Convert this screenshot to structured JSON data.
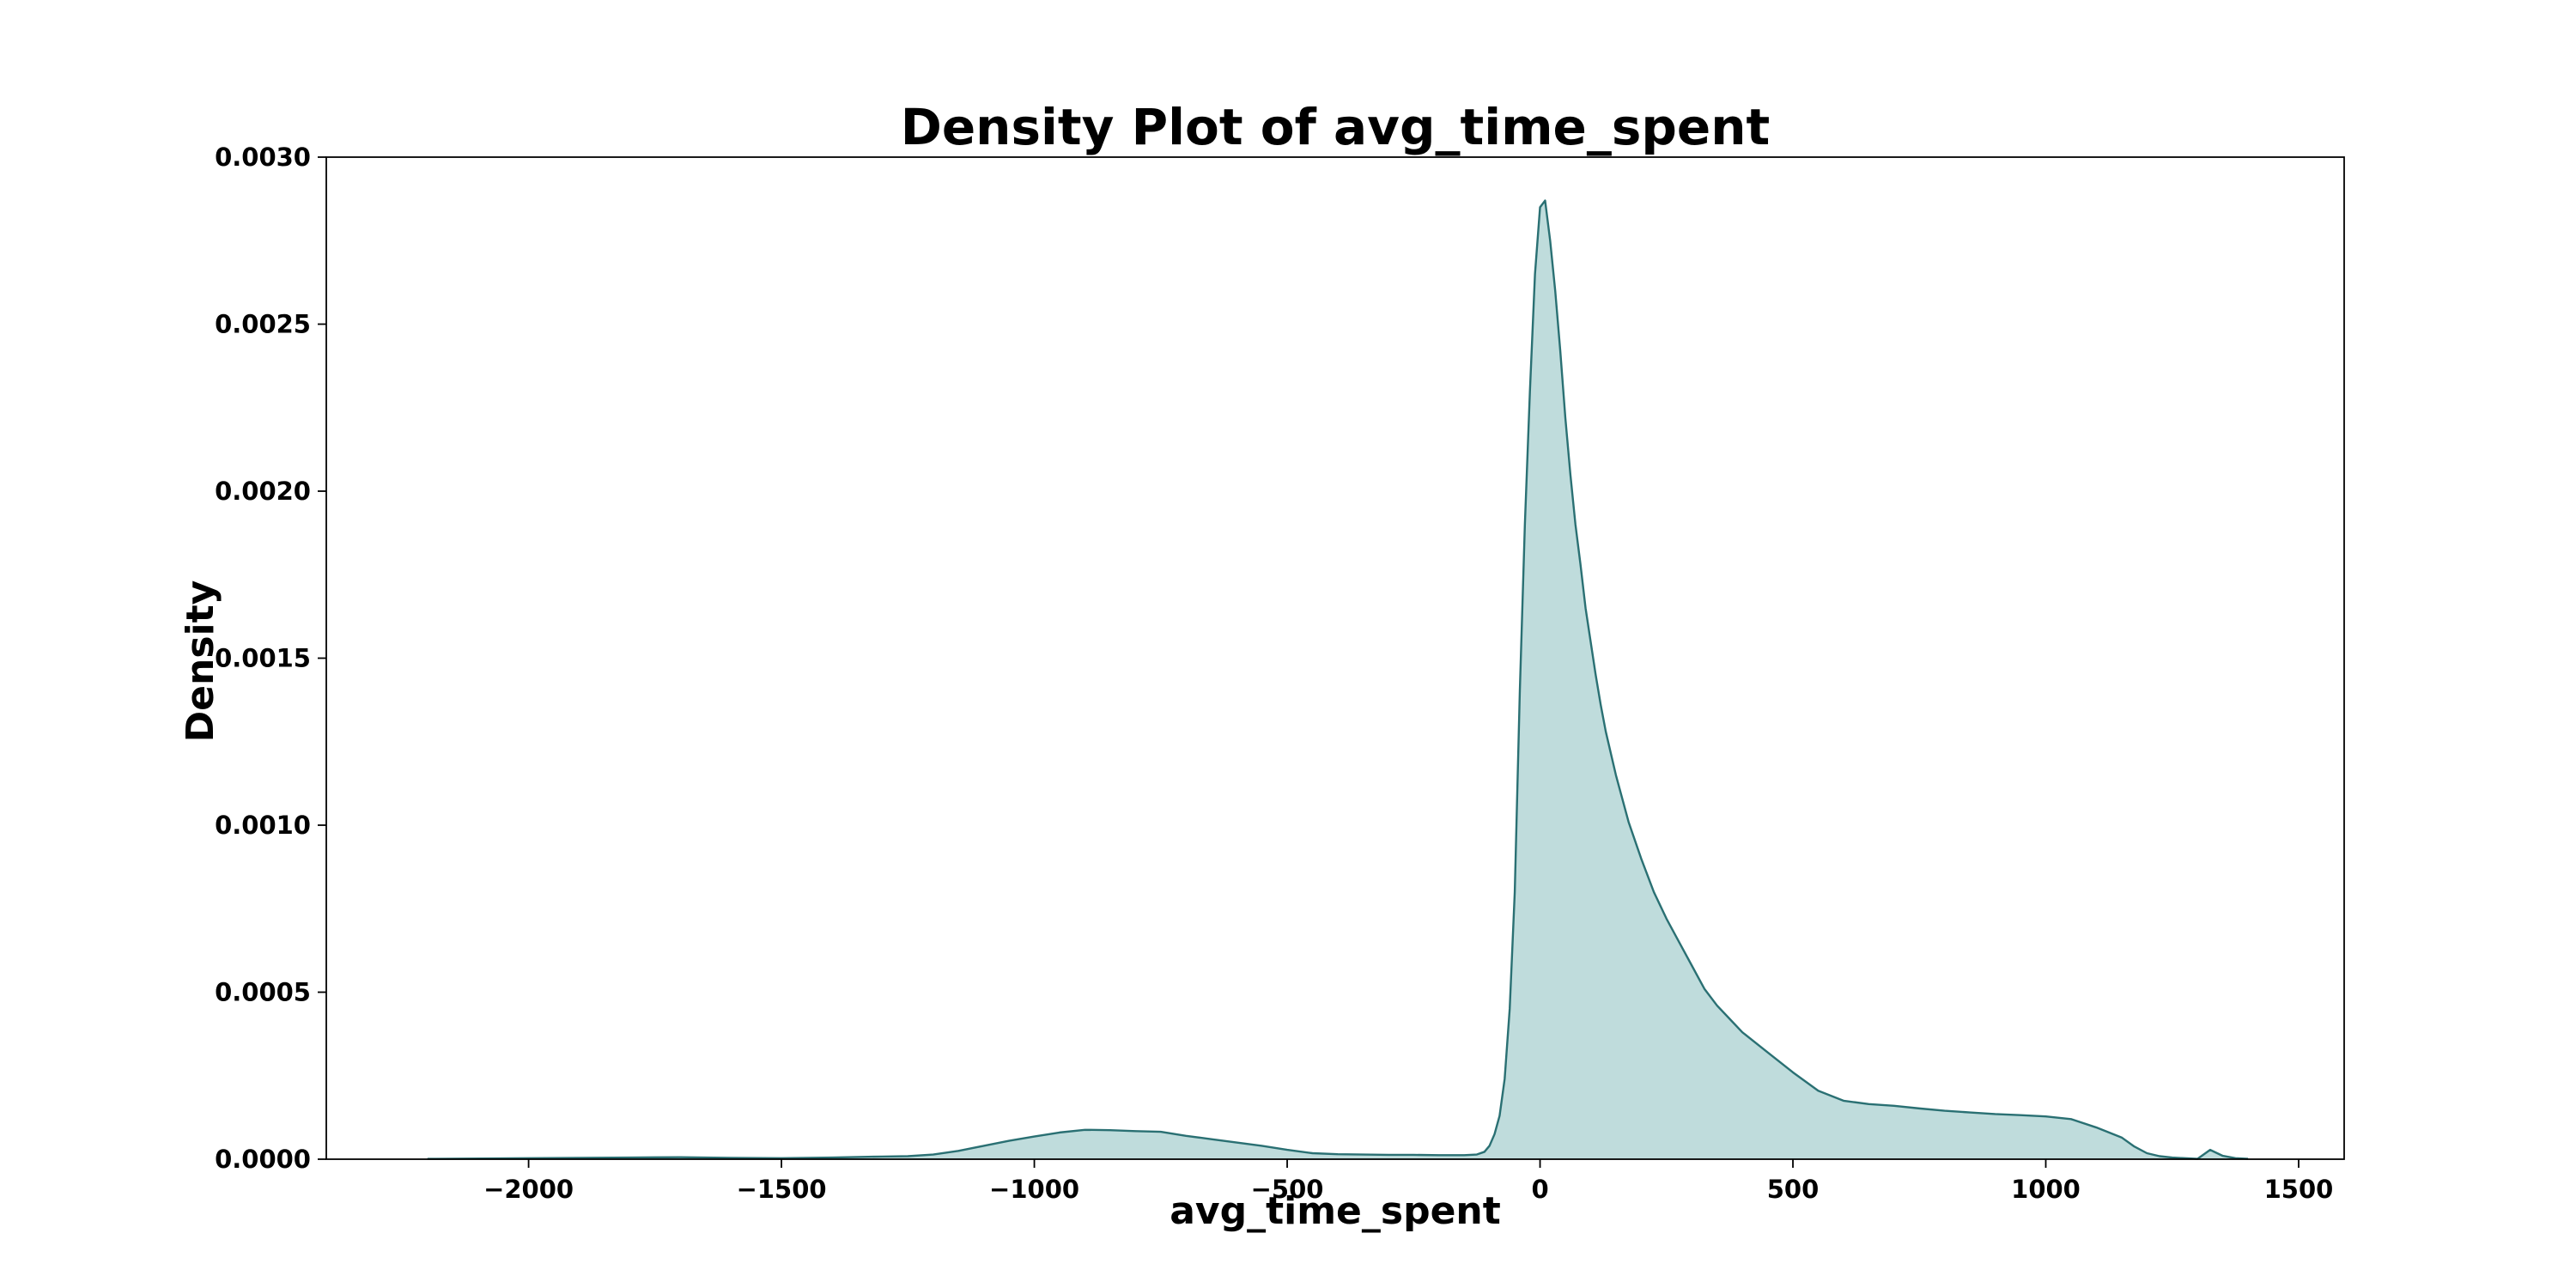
{
  "chart_data": {
    "type": "area",
    "title": "Density Plot of avg_time_spent",
    "xlabel": "avg_time_spent",
    "ylabel": "Density",
    "xlim": [
      -2400,
      1590
    ],
    "ylim": [
      0,
      0.003
    ],
    "x_ticks": [
      -2000,
      -1500,
      -1000,
      -500,
      0,
      500,
      1000,
      1500
    ],
    "x_tick_labels": [
      "−2000",
      "−1500",
      "−1000",
      "−500",
      "0",
      "500",
      "1000",
      "1500"
    ],
    "y_ticks": [
      0,
      0.0005,
      0.001,
      0.0015,
      0.002,
      0.0025,
      0.003
    ],
    "y_tick_labels": [
      "0.0000",
      "0.0005",
      "0.0010",
      "0.0015",
      "0.0020",
      "0.0025",
      "0.0030"
    ],
    "grid": false,
    "line_color": "#2a7073",
    "fill_color": "#bfdcdc",
    "series": [
      {
        "x": [
          -2200,
          -2000,
          -1800,
          -1700,
          -1600,
          -1500,
          -1400,
          -1300,
          -1250,
          -1200,
          -1150,
          -1100,
          -1050,
          -1000,
          -950,
          -900,
          -850,
          -800,
          -750,
          -700,
          -650,
          -600,
          -550,
          -500,
          -450,
          -400,
          -350,
          -300,
          -250,
          -200,
          -150,
          -125,
          -110,
          -100,
          -90,
          -80,
          -70,
          -60,
          -50,
          -40,
          -30,
          -20,
          -10,
          0,
          10,
          20,
          30,
          40,
          50,
          60,
          70,
          80,
          90,
          100,
          110,
          120,
          130,
          150,
          175,
          200,
          225,
          250,
          275,
          300,
          325,
          350,
          375,
          400,
          450,
          500,
          550,
          600,
          650,
          700,
          750,
          800,
          850,
          900,
          950,
          1000,
          1050,
          1100,
          1150,
          1175,
          1200,
          1225,
          1250,
          1275,
          1300,
          1325,
          1350,
          1375,
          1400
        ],
        "y": [
          1e-06,
          3e-06,
          5e-06,
          6e-06,
          4e-06,
          3e-06,
          5e-06,
          8e-06,
          9e-06,
          1.4e-05,
          2.5e-05,
          4e-05,
          5.5e-05,
          6.8e-05,
          8e-05,
          8.8e-05,
          8.7e-05,
          8.4e-05,
          8.2e-05,
          7e-05,
          6e-05,
          5e-05,
          4e-05,
          2.8e-05,
          1.8e-05,
          1.5e-05,
          1.4e-05,
          1.3e-05,
          1.3e-05,
          1.2e-05,
          1.2e-05,
          1.4e-05,
          2.2e-05,
          4e-05,
          7.5e-05,
          0.00013,
          0.00024,
          0.00045,
          0.0008,
          0.0014,
          0.0019,
          0.0023,
          0.00265,
          0.00285,
          0.00287,
          0.00275,
          0.0026,
          0.00242,
          0.00222,
          0.00205,
          0.0019,
          0.00178,
          0.00165,
          0.00155,
          0.00145,
          0.00136,
          0.00128,
          0.00115,
          0.00101,
          0.0009,
          0.0008,
          0.00072,
          0.00065,
          0.00058,
          0.00051,
          0.00046,
          0.00042,
          0.00038,
          0.00032,
          0.00026,
          0.000205,
          0.000175,
          0.000165,
          0.00016,
          0.000152,
          0.000145,
          0.00014,
          0.000135,
          0.000132,
          0.000128,
          0.00012,
          9.5e-05,
          6.5e-05,
          3.8e-05,
          1.8e-05,
          9e-06,
          5e-06,
          3e-06,
          1e-06,
          2.8e-05,
          1e-05,
          3e-06,
          1e-06
        ]
      }
    ]
  }
}
